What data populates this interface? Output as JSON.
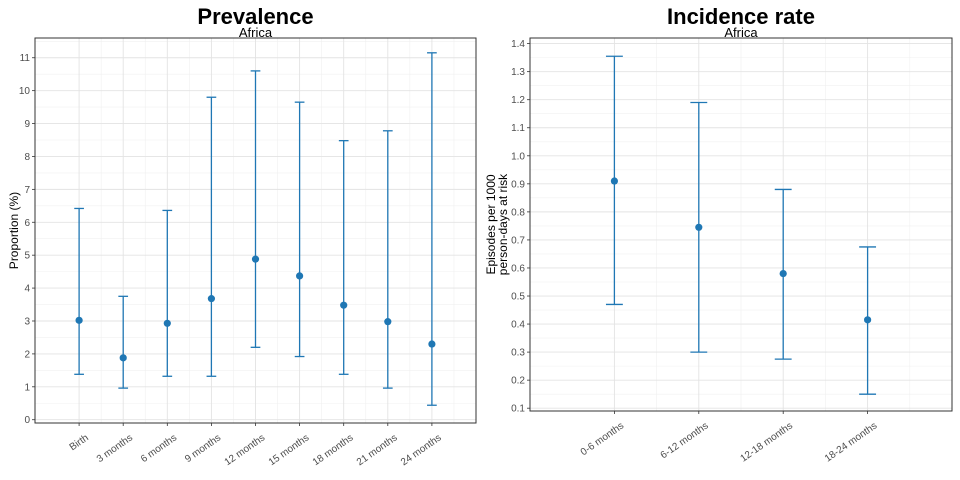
{
  "chart_data": [
    {
      "type": "errorbar",
      "title": "Prevalence",
      "subtitle": "Africa",
      "xlabel": "",
      "ylabel": "Proportion (%)",
      "ylim": [
        -0.1,
        11.6
      ],
      "yticks": [
        0,
        1,
        2,
        3,
        4,
        5,
        6,
        7,
        8,
        9,
        10,
        11
      ],
      "grid": true,
      "color": "#1f77b4",
      "categories": [
        "Birth",
        "3 months",
        "6 months",
        "9 months",
        "12 months",
        "15 months",
        "18 months",
        "21 months",
        "24 months"
      ],
      "values": [
        3.02,
        1.88,
        2.93,
        3.68,
        4.88,
        4.37,
        3.48,
        2.98,
        2.3
      ],
      "lower": [
        1.38,
        0.96,
        1.32,
        1.32,
        2.2,
        1.92,
        1.38,
        0.96,
        0.44
      ],
      "upper": [
        6.42,
        3.75,
        6.36,
        9.8,
        10.6,
        9.65,
        8.48,
        8.78,
        11.15
      ]
    },
    {
      "type": "errorbar",
      "title": "Incidence rate",
      "subtitle": "Africa",
      "xlabel": "",
      "ylabel": "Episodes per 1000\nperson-days at risk",
      "ylim": [
        0.09,
        1.42
      ],
      "yticks": [
        0.1,
        0.2,
        0.3,
        0.4,
        0.5,
        0.6,
        0.7,
        0.8,
        0.9,
        1.0,
        1.1,
        1.2,
        1.3,
        1.4
      ],
      "grid": true,
      "color": "#1f77b4",
      "categories": [
        "0-6 months",
        "6-12 months",
        "12-18 months",
        "18-24 months"
      ],
      "values": [
        0.91,
        0.745,
        0.58,
        0.415
      ],
      "lower": [
        0.47,
        0.3,
        0.275,
        0.15
      ],
      "upper": [
        1.355,
        1.19,
        0.88,
        0.675
      ]
    }
  ]
}
